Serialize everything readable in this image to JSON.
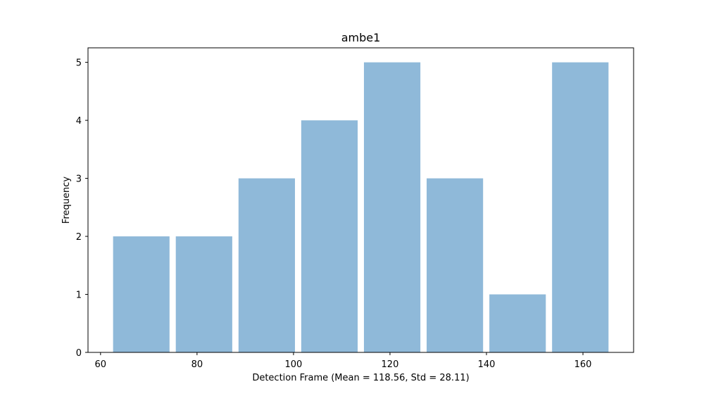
{
  "chart_data": {
    "type": "bar",
    "title": "ambe1",
    "xlabel": "Detection Frame (Mean = 118.56, Std = 28.11)",
    "ylabel": "Frequency",
    "bins": [
      {
        "x0": 62.6,
        "x1": 74.3,
        "value": 2
      },
      {
        "x0": 75.6,
        "x1": 87.3,
        "value": 2
      },
      {
        "x0": 88.6,
        "x1": 100.3,
        "value": 3
      },
      {
        "x0": 101.6,
        "x1": 113.3,
        "value": 4
      },
      {
        "x0": 114.6,
        "x1": 126.3,
        "value": 5
      },
      {
        "x0": 127.6,
        "x1": 139.3,
        "value": 3
      },
      {
        "x0": 140.6,
        "x1": 152.3,
        "value": 1
      },
      {
        "x0": 153.6,
        "x1": 165.3,
        "value": 5
      }
    ],
    "xlim": [
      57.4,
      170.5
    ],
    "ylim": [
      0,
      5.25
    ],
    "xticks": [
      60,
      80,
      100,
      120,
      140,
      160
    ],
    "yticks": [
      0,
      1,
      2,
      3,
      4,
      5
    ],
    "bar_color": "#8fb9d9",
    "grid": false
  }
}
